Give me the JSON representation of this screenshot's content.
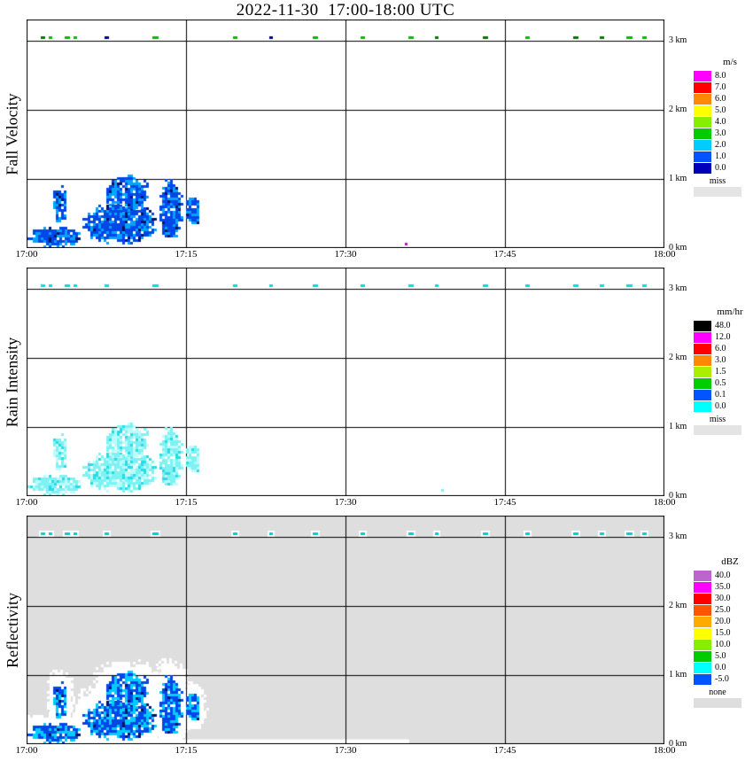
{
  "chart_data": {
    "type": "heatmap",
    "title": "2022-11-30  17:00-18:00 UTC",
    "x": {
      "tick_labels": [
        "17:00",
        "17:15",
        "17:30",
        "17:45",
        "18:00"
      ],
      "tick_minutes": [
        0,
        15,
        30,
        45,
        60
      ],
      "range_minutes": [
        0,
        60
      ],
      "gridline_minutes": [
        15,
        30,
        45
      ]
    },
    "y": {
      "tick_labels": [
        "3 km",
        "2 km",
        "1 km",
        "0 km"
      ],
      "tick_km": [
        3,
        2,
        1,
        0
      ],
      "range_km": [
        0,
        3.3
      ],
      "gridline_km": [
        3,
        2,
        1
      ]
    },
    "echo_event": {
      "description": "low-level precipitation echoes below about 1 km between 17:00 and 17:17",
      "time_minutes": [
        0,
        16.5
      ],
      "height_km": [
        0,
        1.05
      ],
      "blobs": [
        {
          "t": [
            0.4,
            5.0
          ],
          "h": [
            0.02,
            0.3
          ]
        },
        {
          "t": [
            2.5,
            3.8
          ],
          "h": [
            0.4,
            0.9
          ]
        },
        {
          "t": [
            5.5,
            12.0
          ],
          "h": [
            0.08,
            0.62
          ]
        },
        {
          "t": [
            7.5,
            11.5
          ],
          "h": [
            0.55,
            1.02
          ]
        },
        {
          "t": [
            12.5,
            14.6
          ],
          "h": [
            0.15,
            0.95
          ]
        },
        {
          "t": [
            15.0,
            16.3
          ],
          "h": [
            0.35,
            0.72
          ]
        }
      ]
    },
    "speck_row_km": 3.05,
    "specks": [
      [
        1.3,
        0.4
      ],
      [
        2.1,
        0.3
      ],
      [
        3.6,
        0.5
      ],
      [
        4.4,
        0.3
      ],
      [
        7.3,
        0.4
      ],
      [
        11.8,
        0.6
      ],
      [
        19.4,
        0.4
      ],
      [
        22.8,
        0.3
      ],
      [
        26.9,
        0.5
      ],
      [
        31.4,
        0.4
      ],
      [
        35.9,
        0.5
      ],
      [
        38.4,
        0.3
      ],
      [
        42.9,
        0.5
      ],
      [
        46.9,
        0.4
      ],
      [
        51.4,
        0.5
      ],
      [
        53.9,
        0.4
      ],
      [
        56.4,
        0.6
      ],
      [
        57.9,
        0.4
      ]
    ],
    "panels": [
      {
        "name": "fall-velocity",
        "ylabel": "Fall Velocity",
        "unit": "m/s",
        "background": "#FFFFFF",
        "echo_values": "mostly 1-2 m/s",
        "legend": [
          {
            "label": "8.0",
            "color": "#FF00FF"
          },
          {
            "label": "7.0",
            "color": "#FF0000"
          },
          {
            "label": "6.0",
            "color": "#FF8800"
          },
          {
            "label": "5.0",
            "color": "#FFFF00"
          },
          {
            "label": "4.0",
            "color": "#88EE00"
          },
          {
            "label": "3.0",
            "color": "#00CC00"
          },
          {
            "label": "2.0",
            "color": "#00CCFF"
          },
          {
            "label": "1.0",
            "color": "#0055FF"
          },
          {
            "label": "0.0",
            "color": "#0000BB"
          }
        ],
        "missing": {
          "label": "miss",
          "color": "#E4E4E4"
        },
        "palette": {
          "base": "#0047E8",
          "light": "#00A4FF",
          "dark": "#001466",
          "light_frac": 0.34,
          "dark_frac": 0.07
        },
        "speck_colors": [
          "#00BB00",
          "#007700",
          "#000080"
        ],
        "extra_dots": [
          {
            "t": 35.6,
            "h": 0.05,
            "color": "#CC00CC"
          }
        ]
      },
      {
        "name": "rain-intensity",
        "ylabel": "Rain Intensity",
        "unit": "mm/hr",
        "background": "#FFFFFF",
        "echo_values": "mostly 0.0-0.1 mm/hr",
        "legend": [
          {
            "label": "48.0",
            "color": "#000000"
          },
          {
            "label": "12.0",
            "color": "#FF00FF"
          },
          {
            "label": "6.0",
            "color": "#FF0000"
          },
          {
            "label": "3.0",
            "color": "#FF8800"
          },
          {
            "label": "1.5",
            "color": "#AAEE00"
          },
          {
            "label": "0.5",
            "color": "#00CC00"
          },
          {
            "label": "0.1",
            "color": "#0055FF"
          },
          {
            "label": "0.0",
            "color": "#00FFFF"
          }
        ],
        "missing": {
          "label": "miss",
          "color": "#E4E4E4"
        },
        "palette": {
          "base": "#7DF2F2",
          "light": "#BDFBFB",
          "dark": "#2BD9E8",
          "light_frac": 0.32,
          "dark_frac": 0.15
        },
        "speck_colors": [
          "#00DDDD"
        ],
        "extra_dots": [
          {
            "t": 39.0,
            "h": 0.08,
            "color": "#7DF2F2"
          }
        ]
      },
      {
        "name": "reflectivity",
        "ylabel": "Reflectivity",
        "unit": "dBZ",
        "background": "#DEDEDE",
        "echo_values": "mostly -5 to 10 dBZ",
        "legend": [
          {
            "label": "40.0",
            "color": "#BB66CC"
          },
          {
            "label": "35.0",
            "color": "#FF00FF"
          },
          {
            "label": "30.0",
            "color": "#FF0000"
          },
          {
            "label": "25.0",
            "color": "#FF5500"
          },
          {
            "label": "20.0",
            "color": "#FFAA00"
          },
          {
            "label": "15.0",
            "color": "#FFFF00"
          },
          {
            "label": "10.0",
            "color": "#88EE00"
          },
          {
            "label": "5.0",
            "color": "#00CC00"
          },
          {
            "label": "0.0",
            "color": "#00FFFF"
          },
          {
            "label": "-5.0",
            "color": "#0055FF"
          }
        ],
        "missing": {
          "label": "none",
          "color": "#DEDEDE"
        },
        "palette": {
          "base": "#0047E8",
          "light": "#00CCFF",
          "dark": "#001466",
          "light_frac": 0.42,
          "dark_frac": 0.05
        },
        "speck_colors": [
          "#00CCCC"
        ],
        "halo": true,
        "halo_rects": [
          {
            "t": [
              0,
              36
            ],
            "h": [
              0,
              0.07
            ]
          }
        ],
        "extra_dots": []
      }
    ]
  }
}
